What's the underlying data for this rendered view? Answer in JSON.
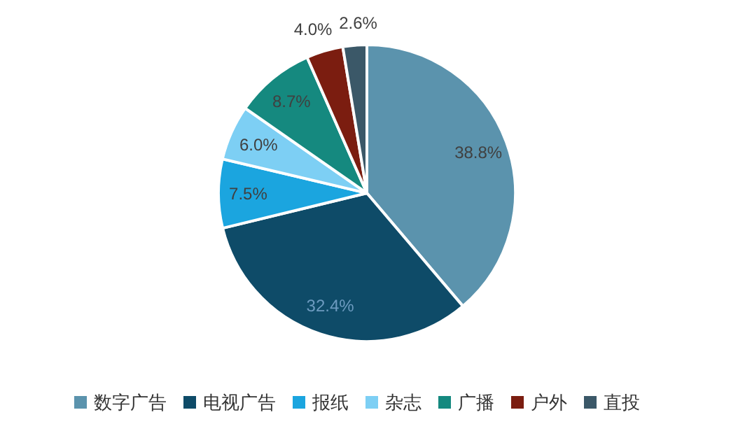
{
  "chart_data": {
    "type": "pie",
    "categories": [
      "数字广告",
      "电视广告",
      "报纸",
      "杂志",
      "广播",
      "户外",
      "直投"
    ],
    "values": [
      38.8,
      32.4,
      7.5,
      6.0,
      8.7,
      4.0,
      2.6
    ],
    "colors": [
      "#5b93ad",
      "#0e4b68",
      "#1ba5df",
      "#7dcff4",
      "#15897f",
      "#7b1d10",
      "#3b5868"
    ],
    "value_labels": [
      "38.8%",
      "32.4%",
      "7.5%",
      "6.0%",
      "8.7%",
      "4.0%",
      "2.6%"
    ],
    "legend": "bottom"
  }
}
